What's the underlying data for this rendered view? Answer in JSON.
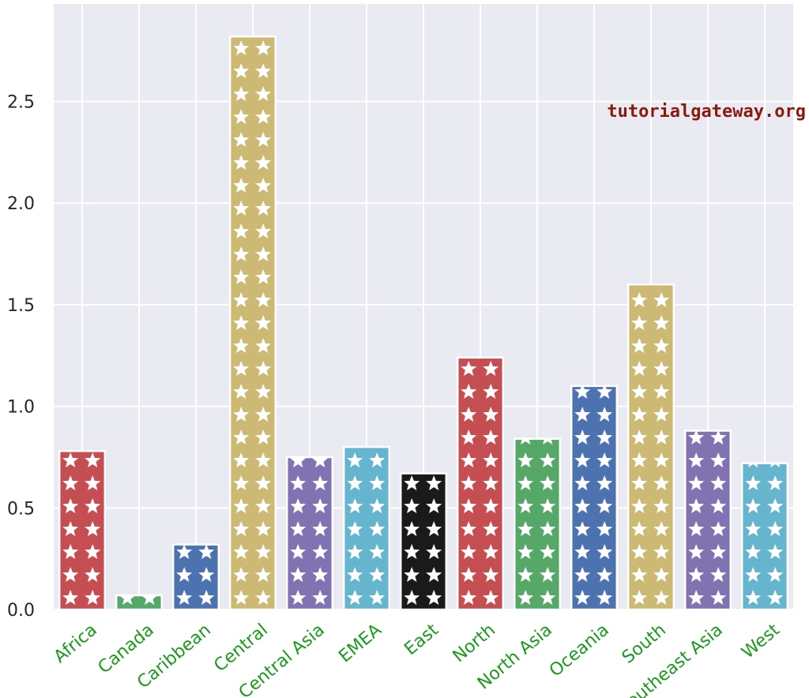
{
  "chart_data": {
    "type": "bar",
    "title": "",
    "xlabel": "",
    "ylabel": "",
    "categories": [
      "Africa",
      "Canada",
      "Caribbean",
      "Central",
      "Central Asia",
      "EMEA",
      "East",
      "North",
      "North Asia",
      "Oceania",
      "South",
      "Southeast Asia",
      "West"
    ],
    "values": [
      0.78,
      0.07,
      0.32,
      2.82,
      0.75,
      0.8,
      0.67,
      1.24,
      0.84,
      1.1,
      1.6,
      0.88,
      0.72
    ],
    "bar_colors": [
      "#c44e52",
      "#55a868",
      "#4c72b0",
      "#ccb974",
      "#8172b2",
      "#64b5cd",
      "#1a1a1a",
      "#c44e52",
      "#55a868",
      "#4c72b0",
      "#ccb974",
      "#8172b2",
      "#64b5cd"
    ],
    "hatch": "star",
    "yticks": [
      "0.0",
      "0.5",
      "1.0",
      "1.5",
      "2.0",
      "2.5"
    ],
    "ylim": [
      0,
      2.98
    ],
    "grid": true,
    "background_color": "#eaeaf2",
    "label_color": "#1a9a1a"
  },
  "watermark": "tutorialgateway.org"
}
